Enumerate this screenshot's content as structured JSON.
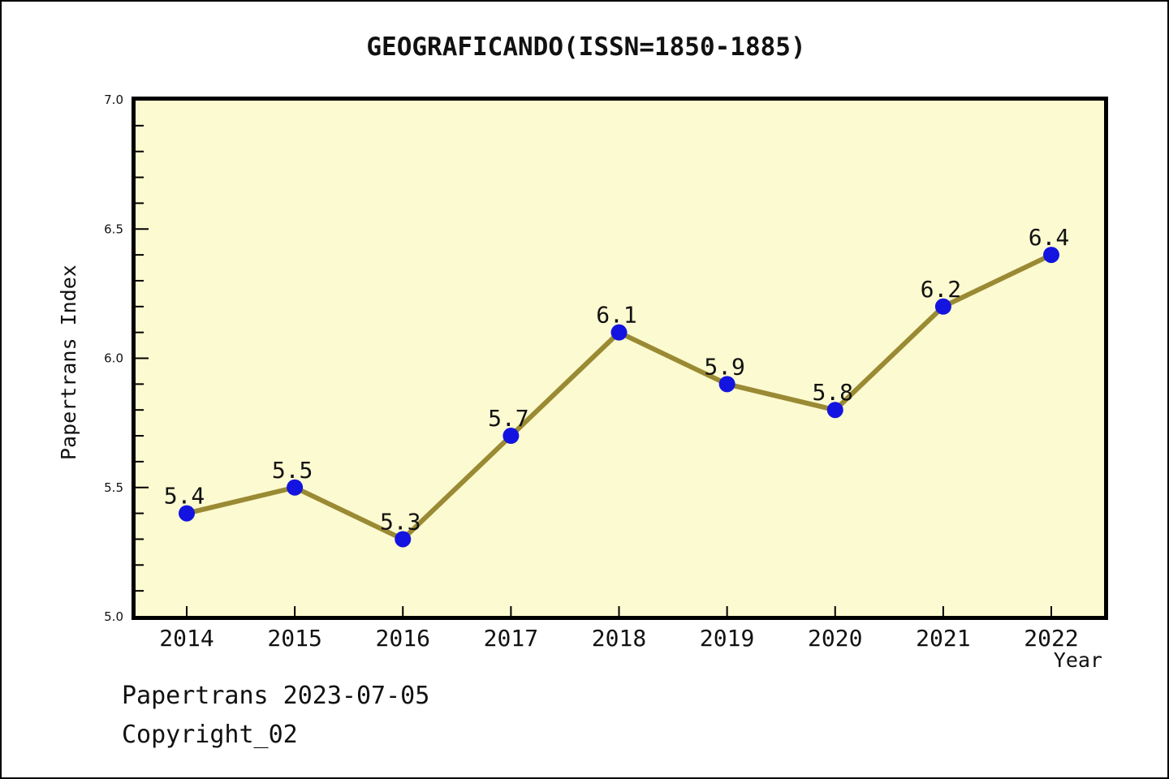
{
  "title": "GEOGRAFICANDO(ISSN=1850-1885)",
  "footer": {
    "line1": "Papertrans 2023-07-05",
    "line2": "Copyright_02"
  },
  "chart_data": {
    "type": "line",
    "title": "GEOGRAFICANDO(ISSN=1850-1885)",
    "xlabel": "Year",
    "ylabel": "Papertrans Index",
    "x": [
      2014,
      2015,
      2016,
      2017,
      2018,
      2019,
      2020,
      2021,
      2022
    ],
    "values": [
      5.4,
      5.5,
      5.3,
      5.7,
      6.1,
      5.9,
      5.8,
      6.2,
      6.4
    ],
    "ylim": [
      5.0,
      7.0
    ],
    "y_major_step": 0.5,
    "y_minor_step": 0.1,
    "y_tick_labels": [
      "5.0",
      "5.5",
      "6.0",
      "6.5",
      "7.0"
    ],
    "point_labels": [
      "5.4",
      "5.5",
      "5.3",
      "5.7",
      "6.1",
      "5.9",
      "5.8",
      "6.2",
      "6.4"
    ],
    "grid": false,
    "legend": "none",
    "colors": {
      "plot_bg": "#FCFAD0",
      "line": "#9A8A34",
      "marker": "#1414E0",
      "axis": "#000000",
      "text": "#111111"
    }
  }
}
